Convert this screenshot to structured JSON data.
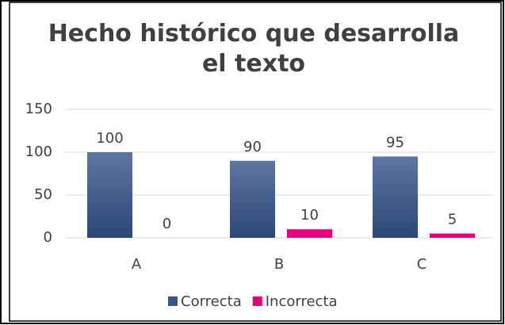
{
  "chart_data": {
    "type": "bar",
    "title": "Hecho histórico que desarrolla el texto",
    "categories": [
      "A",
      "B",
      "C"
    ],
    "series": [
      {
        "name": "Correcta",
        "color": "#3a5887",
        "values": [
          100,
          90,
          95
        ]
      },
      {
        "name": "Incorrecta",
        "color": "#e6007e",
        "values": [
          0,
          10,
          5
        ]
      }
    ],
    "ylim": [
      0,
      150
    ],
    "yticks": [
      0,
      50,
      100,
      150
    ],
    "grid": true,
    "legend": "bottom"
  }
}
